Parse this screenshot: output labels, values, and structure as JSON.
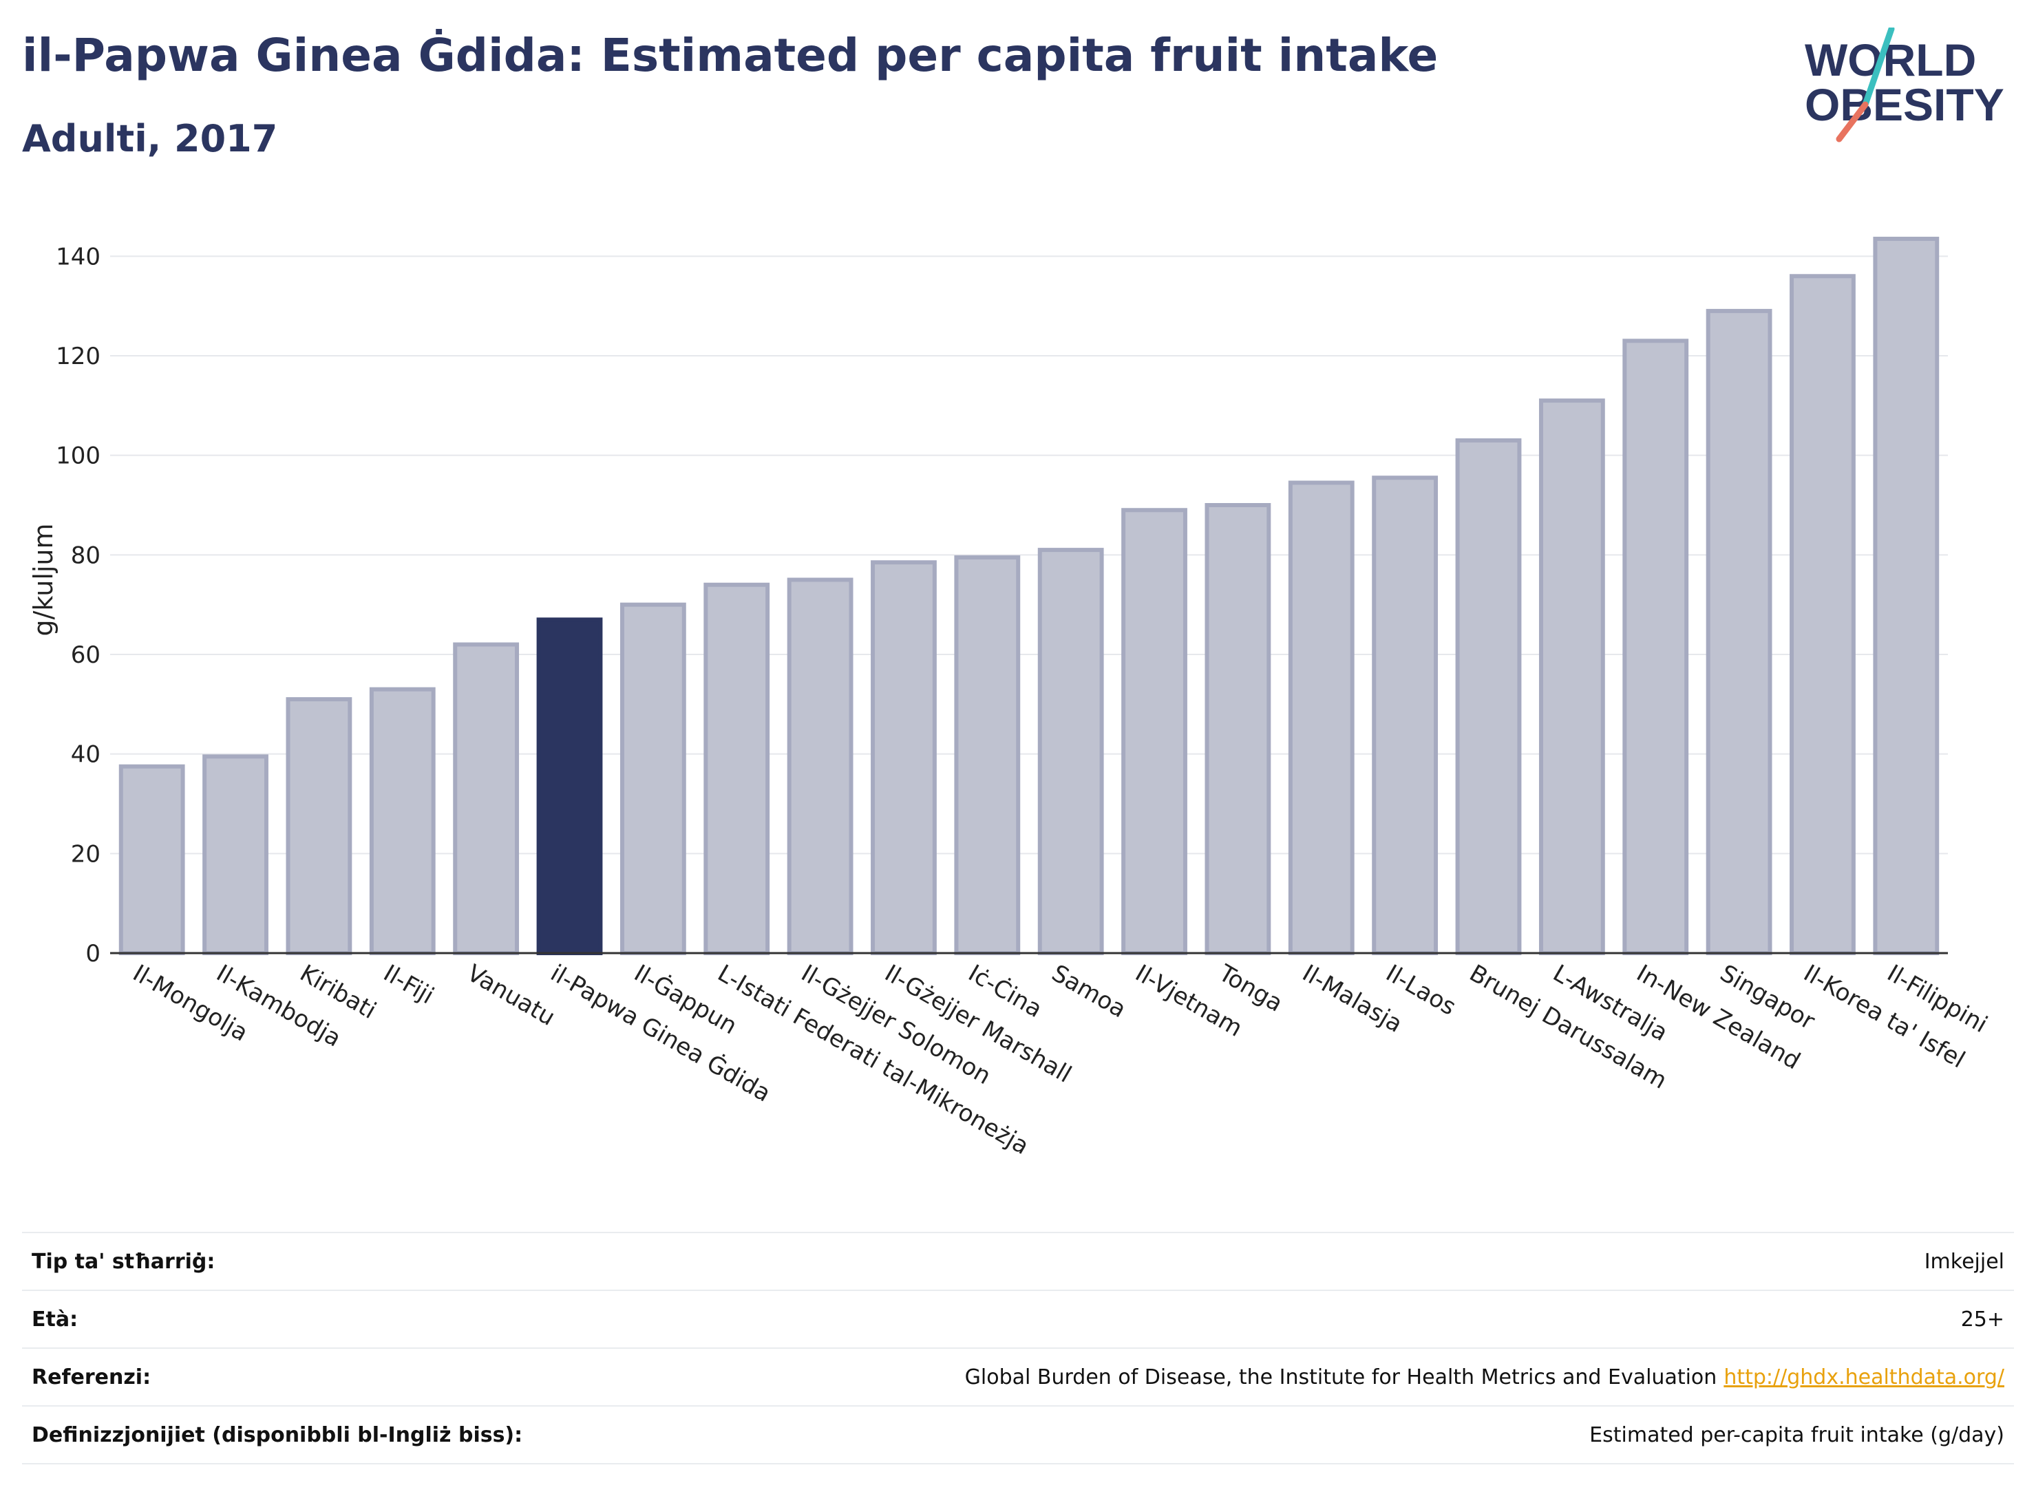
{
  "header": {
    "title": "il-Papwa Ginea Ġdida: Estimated per capita fruit intake",
    "subtitle": "Adulti, 2017"
  },
  "logo": {
    "line1": "WORLD",
    "line2": "OBESITY"
  },
  "colors": {
    "highlight": "#2b3560",
    "bar_fill": "#bfc2d0",
    "bar_stroke": "#a6aac0",
    "accent_teal": "#3bbfbf",
    "accent_coral": "#e8735f"
  },
  "chart_data": {
    "type": "bar",
    "ylabel": "g/kuljum",
    "ylim": [
      0,
      150
    ],
    "yticks": [
      0,
      20,
      40,
      60,
      80,
      100,
      120,
      140
    ],
    "highlight": "il-Papwa Ginea Ġdida",
    "categories": [
      "Il-Mongolja",
      "Il-Kambodja",
      "Kiribati",
      "Il-Fiji",
      "Vanuatu",
      "il-Papwa Ginea Ġdida",
      "Il-Ġappun",
      "L-Istati Federati tal-Mikroneżja",
      "Il-Gżejjer Solomon",
      "Il-Gżejjer Marshall",
      "Iċ-Ċina",
      "Samoa",
      "Il-Vjetnam",
      "Tonga",
      "Il-Malasja",
      "Il-Laos",
      "Brunej Darussalam",
      "L-Awstralja",
      "In-New Zealand",
      "Singapor",
      "Il-Korea ta' Isfel",
      "Il-Filippini"
    ],
    "values": [
      37.5,
      39.5,
      51,
      53,
      62,
      67,
      70,
      74,
      75,
      78.5,
      79.5,
      81,
      89,
      90,
      94.5,
      95.5,
      103,
      111,
      123,
      129,
      136,
      143.5
    ]
  },
  "meta": {
    "rows": [
      {
        "label": "Tip ta' stħarriġ:",
        "value": "Imkejjel"
      },
      {
        "label": "Età:",
        "value": "25+"
      },
      {
        "label": "Referenzi:",
        "value": "Global Burden of Disease, the Institute for Health Metrics and Evaluation",
        "link": "http://ghdx.healthdata.org/"
      },
      {
        "label": "Definizzjonijiet (disponibbli bl-Ingliż biss):",
        "value": "Estimated per-capita fruit intake (g/day)"
      }
    ]
  }
}
